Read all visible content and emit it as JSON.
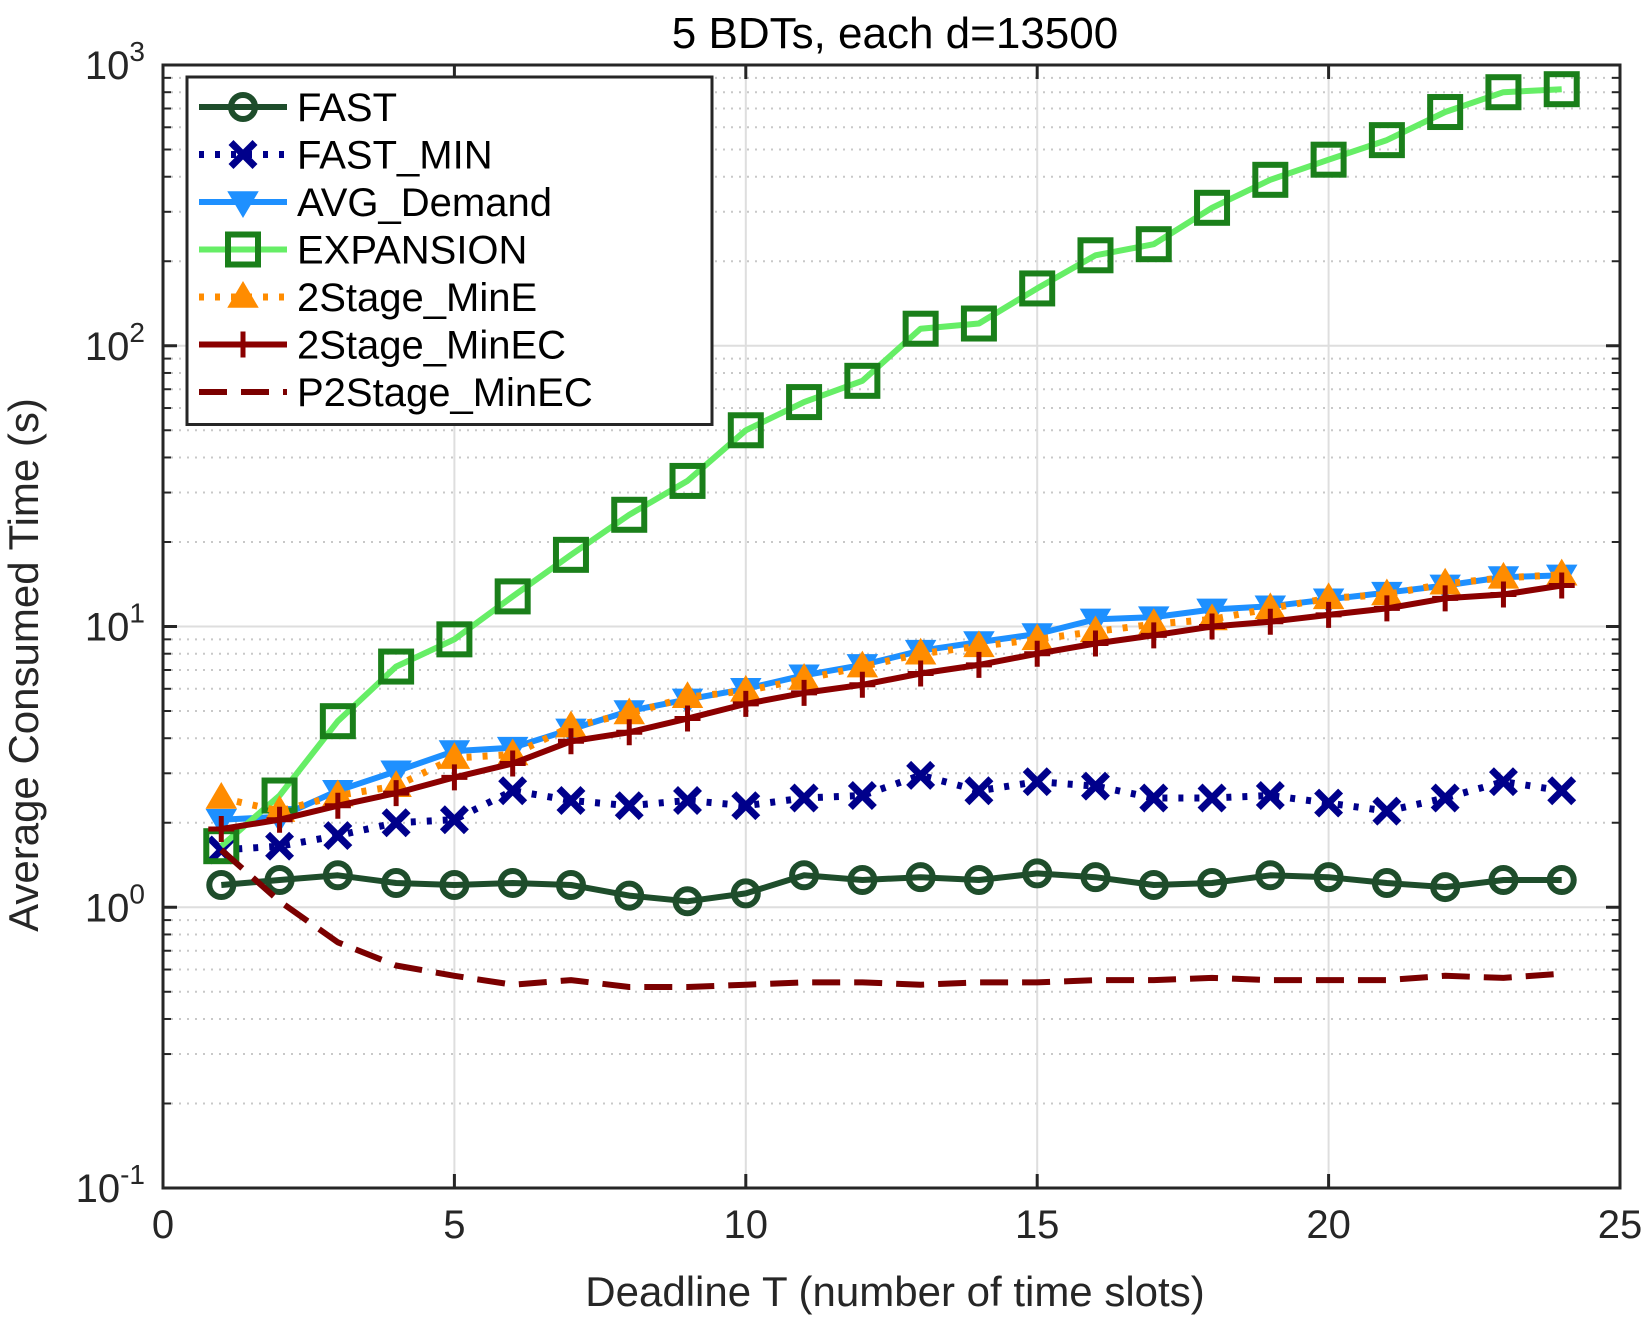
{
  "chart_data": {
    "type": "line",
    "title": "5 BDTs, each d=13500",
    "xlabel": "Deadline T (number of time slots)",
    "ylabel": "Average Consumed Time (s)",
    "xlim": [
      0,
      25
    ],
    "ylim": [
      0.1,
      1000
    ],
    "yscale": "log",
    "grid": true,
    "legend_position": "top-left",
    "x_ticks": [
      0,
      5,
      10,
      15,
      20,
      25
    ],
    "x_tick_labels": [
      "0",
      "5",
      "10",
      "15",
      "20",
      "25"
    ],
    "y_ticks": [
      0.1,
      1,
      10,
      100,
      1000
    ],
    "y_tick_labels": [
      {
        "base": "10",
        "exp": "-1"
      },
      {
        "base": "10",
        "exp": "0"
      },
      {
        "base": "10",
        "exp": "1"
      },
      {
        "base": "10",
        "exp": "2"
      },
      {
        "base": "10",
        "exp": "3"
      }
    ],
    "x": [
      1,
      2,
      3,
      4,
      5,
      6,
      7,
      8,
      9,
      10,
      11,
      12,
      13,
      14,
      15,
      16,
      17,
      18,
      19,
      20,
      21,
      22,
      23,
      24
    ],
    "series": [
      {
        "name": "FAST",
        "color": "#1e4d2b",
        "line_style": "solid",
        "marker": "circle",
        "values": [
          1.2,
          1.25,
          1.3,
          1.22,
          1.2,
          1.22,
          1.2,
          1.1,
          1.05,
          1.12,
          1.3,
          1.25,
          1.28,
          1.25,
          1.32,
          1.28,
          1.2,
          1.22,
          1.3,
          1.28,
          1.22,
          1.18,
          1.25,
          1.25
        ]
      },
      {
        "name": "FAST_MIN",
        "color": "#00008b",
        "line_style": "dotted",
        "marker": "x",
        "values": [
          1.6,
          1.65,
          1.8,
          2.0,
          2.05,
          2.6,
          2.4,
          2.3,
          2.4,
          2.3,
          2.45,
          2.5,
          2.95,
          2.6,
          2.8,
          2.7,
          2.45,
          2.45,
          2.5,
          2.35,
          2.2,
          2.45,
          2.8,
          2.6
        ]
      },
      {
        "name": "AVG_Demand",
        "color": "#1e90ff",
        "line_style": "solid",
        "marker": "triangle-down",
        "values": [
          2.05,
          2.1,
          2.6,
          3.05,
          3.6,
          3.7,
          4.3,
          5.0,
          5.5,
          6.0,
          6.7,
          7.3,
          8.2,
          8.8,
          9.4,
          10.6,
          10.8,
          11.5,
          11.8,
          12.5,
          13.2,
          14.0,
          15.0,
          15.2
        ]
      },
      {
        "name": "EXPANSION",
        "color": "#66ee66",
        "marker_color": "#1a7f1a",
        "line_style": "solid",
        "marker": "square",
        "values": [
          1.65,
          2.5,
          4.6,
          7.2,
          9.0,
          12.8,
          18.0,
          25.0,
          33.0,
          50.0,
          63.0,
          75.0,
          115.0,
          120.0,
          160.0,
          210.0,
          230.0,
          310.0,
          390.0,
          460.0,
          540.0,
          680.0,
          800.0,
          820.0
        ]
      },
      {
        "name": "2Stage_MinE",
        "color": "#ff8c00",
        "line_style": "dotted",
        "marker": "triangle-up",
        "values": [
          2.45,
          2.2,
          2.5,
          2.7,
          3.4,
          3.5,
          4.4,
          4.9,
          5.6,
          5.9,
          6.5,
          7.2,
          8.0,
          8.5,
          9.0,
          9.6,
          10.2,
          10.6,
          11.6,
          12.6,
          13.0,
          14.2,
          14.9,
          15.3
        ]
      },
      {
        "name": "2Stage_MinEC",
        "color": "#8b0000",
        "line_style": "solid",
        "marker": "plus",
        "values": [
          1.9,
          2.05,
          2.3,
          2.55,
          2.9,
          3.25,
          3.9,
          4.2,
          4.7,
          5.3,
          5.8,
          6.2,
          6.8,
          7.3,
          8.0,
          8.7,
          9.3,
          10.0,
          10.4,
          11.0,
          11.6,
          12.6,
          13.0,
          14.0
        ]
      },
      {
        "name": "P2Stage_MinEC",
        "color": "#7b0000",
        "line_style": "dashed",
        "marker": "none",
        "values": [
          1.6,
          1.05,
          0.75,
          0.62,
          0.57,
          0.53,
          0.55,
          0.52,
          0.52,
          0.53,
          0.54,
          0.54,
          0.53,
          0.54,
          0.54,
          0.55,
          0.55,
          0.56,
          0.55,
          0.55,
          0.55,
          0.57,
          0.56,
          0.58
        ]
      }
    ]
  }
}
